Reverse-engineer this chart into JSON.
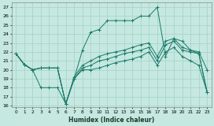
{
  "xlabel": "Humidex (Indice chaleur)",
  "xlim": [
    -0.5,
    23.5
  ],
  "ylim": [
    15.8,
    27.5
  ],
  "yticks": [
    16,
    17,
    18,
    19,
    20,
    21,
    22,
    23,
    24,
    25,
    26,
    27
  ],
  "xticks": [
    0,
    1,
    2,
    3,
    4,
    5,
    6,
    7,
    8,
    9,
    10,
    11,
    12,
    13,
    14,
    15,
    16,
    17,
    18,
    19,
    20,
    21,
    22,
    23
  ],
  "bg_color": "#c5e8e0",
  "grid_color": "#aad4cc",
  "line_color": "#1a7a6a",
  "series": [
    {
      "x": [
        0,
        1,
        2,
        3,
        4,
        5,
        6,
        7,
        8,
        9,
        10,
        11,
        12,
        13,
        14,
        15,
        16,
        17,
        18,
        19,
        20,
        21,
        22,
        23
      ],
      "y": [
        21.8,
        20.6,
        20.0,
        20.2,
        20.2,
        20.2,
        16.2,
        19.0,
        22.2,
        24.2,
        24.5,
        25.5,
        25.5,
        25.5,
        25.5,
        26.0,
        26.0,
        27.0,
        21.5,
        23.5,
        23.2,
        22.2,
        22.0,
        20.0
      ]
    },
    {
      "x": [
        0,
        1,
        2,
        3,
        4,
        5,
        6,
        7,
        8,
        9,
        10,
        11,
        12,
        13,
        14,
        15,
        16,
        17,
        18,
        19,
        20,
        21,
        22,
        23
      ],
      "y": [
        21.8,
        20.6,
        20.0,
        20.2,
        20.2,
        20.2,
        16.2,
        19.2,
        20.5,
        21.0,
        21.5,
        21.8,
        22.0,
        22.2,
        22.5,
        22.8,
        23.0,
        21.5,
        23.2,
        23.5,
        22.5,
        22.2,
        21.8,
        17.5
      ]
    },
    {
      "x": [
        0,
        1,
        2,
        3,
        4,
        5,
        6,
        7,
        8,
        9,
        10,
        11,
        12,
        13,
        14,
        15,
        16,
        17,
        18,
        19,
        20,
        21,
        22,
        23
      ],
      "y": [
        21.8,
        20.6,
        20.0,
        20.2,
        20.2,
        20.2,
        16.2,
        19.0,
        20.2,
        20.5,
        21.0,
        21.2,
        21.5,
        21.8,
        22.0,
        22.2,
        22.5,
        21.0,
        22.8,
        23.2,
        22.2,
        22.0,
        21.8,
        17.5
      ]
    },
    {
      "x": [
        0,
        1,
        2,
        3,
        4,
        5,
        6,
        7,
        8,
        9,
        10,
        11,
        12,
        13,
        14,
        15,
        16,
        17,
        18,
        19,
        20,
        21,
        22,
        23
      ],
      "y": [
        21.8,
        20.6,
        20.0,
        18.0,
        18.0,
        18.0,
        16.2,
        19.0,
        20.0,
        20.0,
        20.2,
        20.5,
        20.8,
        21.0,
        21.2,
        21.5,
        22.0,
        20.5,
        22.0,
        22.5,
        21.5,
        21.0,
        20.5,
        17.5
      ]
    }
  ]
}
